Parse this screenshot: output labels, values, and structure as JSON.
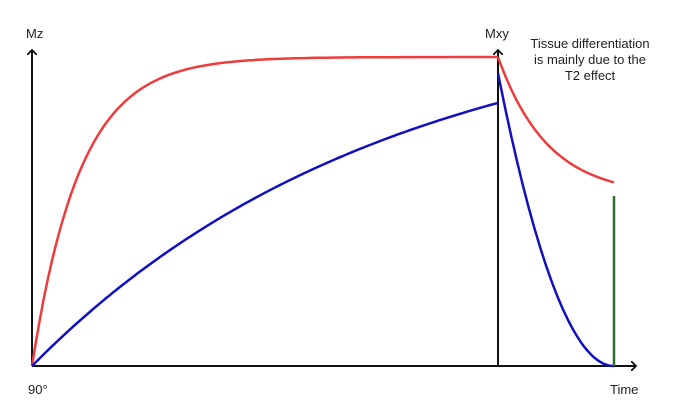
{
  "labels": {
    "y_axis_left": "Mz",
    "y_axis_right": "Mxy",
    "x_axis": "Time",
    "origin": "90°",
    "note_line1": "Tissue differentiation",
    "note_line2": "is mainly due to the",
    "note_line3": "T2 effect"
  },
  "colors": {
    "axis": "#111111",
    "tissue_a": "#ee3b3b",
    "tissue_b": "#1010c0",
    "marker": "#2e6b2e"
  }
}
